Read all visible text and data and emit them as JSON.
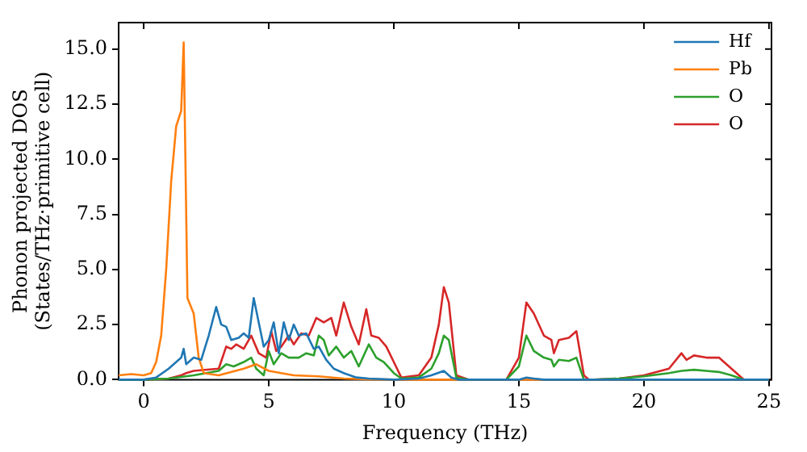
{
  "chart_data": {
    "type": "line",
    "xlabel": "Frequency (THz)",
    "ylabel": "Phonon projected DOS\n(States/THz·primitive cell)",
    "xlim": [
      -1,
      25.1
    ],
    "xticks": [
      0,
      5,
      10,
      15,
      20,
      25
    ],
    "ylim": [
      0,
      16.2
    ],
    "yticks": [
      {
        "value": 0,
        "label": "0.0"
      },
      {
        "value": 2.5,
        "label": "2.5"
      },
      {
        "value": 5,
        "label": "5.0"
      },
      {
        "value": 7.5,
        "label": "7.5"
      },
      {
        "value": 10,
        "label": "10.0"
      },
      {
        "value": 12.5,
        "label": "12.5"
      },
      {
        "value": 15,
        "label": "15.0"
      }
    ],
    "grid": false,
    "legend": "top right",
    "marker": "none",
    "line_style": "solid",
    "series": [
      {
        "name": "Hf",
        "color": "#1f77b4",
        "x": [
          -1,
          0,
          0.5,
          1,
          1.3,
          1.5,
          1.6,
          1.7,
          2,
          2.3,
          2.6,
          2.9,
          3.1,
          3.3,
          3.5,
          3.8,
          4,
          4.2,
          4.4,
          4.6,
          4.8,
          5,
          5.2,
          5.4,
          5.6,
          5.8,
          6,
          6.2,
          6.5,
          6.8,
          7,
          7.3,
          7.6,
          8,
          8.5,
          9,
          10,
          11,
          11.5,
          12,
          12.3,
          12.6,
          15,
          15.3,
          15.6,
          16,
          25
        ],
        "values": [
          0,
          0,
          0.1,
          0.5,
          0.8,
          1,
          1.4,
          0.7,
          1,
          0.9,
          2,
          3.3,
          2.5,
          2.4,
          1.8,
          1.9,
          2.1,
          1.9,
          3.7,
          2.6,
          1.5,
          1.8,
          2.6,
          1.2,
          2.6,
          1.8,
          2.5,
          2,
          2.1,
          1.4,
          1.5,
          0.9,
          0.5,
          0.3,
          0.1,
          0.05,
          0,
          0.05,
          0.2,
          0.4,
          0.1,
          0,
          0,
          0.1,
          0.05,
          0,
          0
        ]
      },
      {
        "name": "Pb",
        "color": "#ff7f0e",
        "x": [
          -1,
          -0.5,
          0,
          0.3,
          0.5,
          0.7,
          0.9,
          1.1,
          1.3,
          1.5,
          1.6,
          1.75,
          2,
          2.2,
          2.4,
          3,
          4,
          4.5,
          5,
          6,
          7,
          8,
          9,
          10,
          25
        ],
        "values": [
          0.2,
          0.25,
          0.2,
          0.3,
          0.8,
          2,
          5,
          9,
          11.5,
          12.2,
          15.3,
          3.7,
          3,
          1,
          0.3,
          0.2,
          0.5,
          0.7,
          0.4,
          0.2,
          0.15,
          0.05,
          0.02,
          0,
          0
        ]
      },
      {
        "name": "O",
        "color": "#2ca02c",
        "x": [
          -1,
          0,
          1,
          2,
          3,
          3.3,
          3.6,
          4,
          4.3,
          4.5,
          4.8,
          5,
          5.2,
          5.5,
          5.8,
          6.2,
          6.5,
          6.8,
          7,
          7.2,
          7.4,
          7.7,
          8,
          8.3,
          8.6,
          9,
          9.3,
          9.6,
          10,
          10.3,
          11,
          11.5,
          11.8,
          12,
          12.2,
          12.5,
          13,
          14.5,
          15,
          15.3,
          15.6,
          16,
          16.3,
          16.4,
          16.6,
          17,
          17.3,
          17.6,
          18,
          19,
          20,
          21,
          21.5,
          22,
          22.5,
          23,
          23.5,
          24,
          25
        ],
        "values": [
          0,
          0,
          0.05,
          0.2,
          0.4,
          0.7,
          0.6,
          0.8,
          1,
          0.5,
          0.2,
          1.3,
          0.7,
          1.2,
          1,
          1,
          1.2,
          1.1,
          2,
          1.8,
          1.1,
          1.5,
          1,
          1.3,
          0.6,
          1.6,
          1,
          0.8,
          0.3,
          0.05,
          0.1,
          0.5,
          1.2,
          2,
          1.8,
          0.1,
          0,
          0,
          0.6,
          2,
          1.3,
          1,
          0.9,
          0.6,
          0.9,
          0.85,
          1,
          0,
          0,
          0.05,
          0.15,
          0.3,
          0.4,
          0.45,
          0.4,
          0.35,
          0.2,
          0,
          0
        ]
      },
      {
        "name": "O",
        "color": "#d62728",
        "x": [
          -1,
          0,
          1,
          1.5,
          1.7,
          2,
          3,
          3.3,
          3.5,
          3.7,
          4,
          4.3,
          4.6,
          4.9,
          5.1,
          5.3,
          5.5,
          5.8,
          6,
          6.3,
          6.6,
          6.9,
          7.2,
          7.5,
          7.7,
          8,
          8.3,
          8.6,
          8.9,
          9.1,
          9.4,
          9.7,
          10,
          10.3,
          11,
          11.5,
          11.8,
          12,
          12.2,
          12.5,
          13,
          14.5,
          15,
          15.3,
          15.6,
          16,
          16.3,
          16.4,
          16.6,
          17,
          17.3,
          17.6,
          17.8,
          18,
          19,
          20,
          21,
          21.5,
          21.7,
          22,
          22.5,
          23,
          23.5,
          24,
          25
        ],
        "values": [
          0,
          0,
          0.05,
          0.2,
          0.3,
          0.4,
          0.5,
          1.5,
          1.4,
          1.6,
          1.4,
          2,
          1.2,
          1,
          2.2,
          1.3,
          1.5,
          2,
          1.6,
          2.1,
          2,
          2.8,
          2.6,
          2.8,
          2,
          3.5,
          2.4,
          1.6,
          3.2,
          2,
          1.9,
          1.5,
          0.8,
          0.1,
          0.2,
          1,
          2.5,
          4.2,
          3.5,
          0.2,
          0,
          0,
          1,
          3.5,
          3,
          2,
          1.8,
          1.2,
          1.8,
          1.9,
          2.2,
          0.2,
          0,
          0,
          0.05,
          0.2,
          0.5,
          1.2,
          0.9,
          1.1,
          1,
          1,
          0.5,
          0,
          0
        ]
      }
    ]
  }
}
